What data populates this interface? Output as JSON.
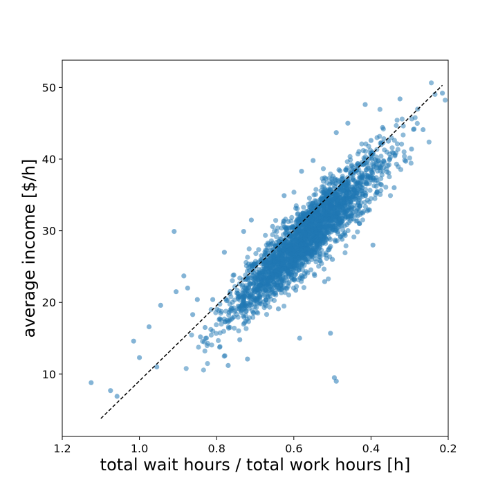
{
  "chart_data": {
    "type": "scatter",
    "title": "",
    "xlabel": "total wait hours / total work hours [h]",
    "ylabel": "average income [$/h]",
    "xlim": [
      1.2,
      0.2
    ],
    "ylim": [
      1.3,
      53.8
    ],
    "x_inverted": true,
    "grid": false,
    "legend": "none",
    "x_ticks": [
      1.2,
      1.0,
      0.8,
      0.6,
      0.4,
      0.2
    ],
    "x_tick_labels": [
      "1.2",
      "1.0",
      "0.8",
      "0.6",
      "0.4",
      "0.2"
    ],
    "y_ticks": [
      10,
      20,
      30,
      40,
      50
    ],
    "y_tick_labels": [
      "10",
      "20",
      "30",
      "40",
      "50"
    ],
    "point_color": "#1f77b4",
    "point_alpha": 0.55,
    "trend_line": {
      "style": "dashed",
      "color": "#000000",
      "x": [
        1.1,
        0.215
      ],
      "y": [
        3.8,
        50.3
      ]
    },
    "series": [
      {
        "x": [
          1.125,
          1.075,
          1.058,
          1.015,
          1.0,
          0.975,
          0.955,
          0.91,
          0.945,
          0.905,
          0.885,
          0.875,
          0.862,
          0.85,
          0.842,
          0.83,
          0.81,
          0.79,
          0.78,
          0.77,
          0.755,
          0.74,
          0.73,
          0.72,
          0.71,
          0.7,
          0.685,
          0.67,
          0.655,
          0.64,
          0.625,
          0.61,
          0.595,
          0.58,
          0.565,
          0.55,
          0.535,
          0.52,
          0.505,
          0.49,
          0.475,
          0.46,
          0.445,
          0.43,
          0.415,
          0.4,
          0.385,
          0.37,
          0.355,
          0.34,
          0.325,
          0.31,
          0.295,
          0.265,
          0.215,
          0.49,
          0.495,
          0.505,
          0.585,
          0.62,
          0.5,
          0.43,
          0.395
        ],
        "y": [
          8.8,
          7.7,
          6.9,
          14.6,
          12.3,
          16.6,
          11.0,
          29.9,
          19.6,
          21.5,
          23.7,
          22.0,
          18.3,
          20.4,
          15.2,
          16.5,
          20.4,
          17.6,
          27.0,
          11.2,
          18.0,
          14.8,
          29.9,
          12.1,
          31.5,
          21.5,
          23.3,
          22.5,
          30.6,
          19.1,
          34.9,
          24.0,
          21.7,
          38.3,
          26.9,
          39.8,
          27.5,
          22.9,
          33.5,
          43.7,
          28.8,
          45.0,
          38.1,
          31.0,
          47.6,
          42.6,
          35.3,
          44.4,
          42.5,
          36.0,
          48.4,
          39.7,
          41.4,
          44.1,
          49.2,
          9.0,
          9.5,
          15.7,
          15.0,
          22.0,
          26.0,
          31.0,
          28.0
        ]
      }
    ]
  }
}
